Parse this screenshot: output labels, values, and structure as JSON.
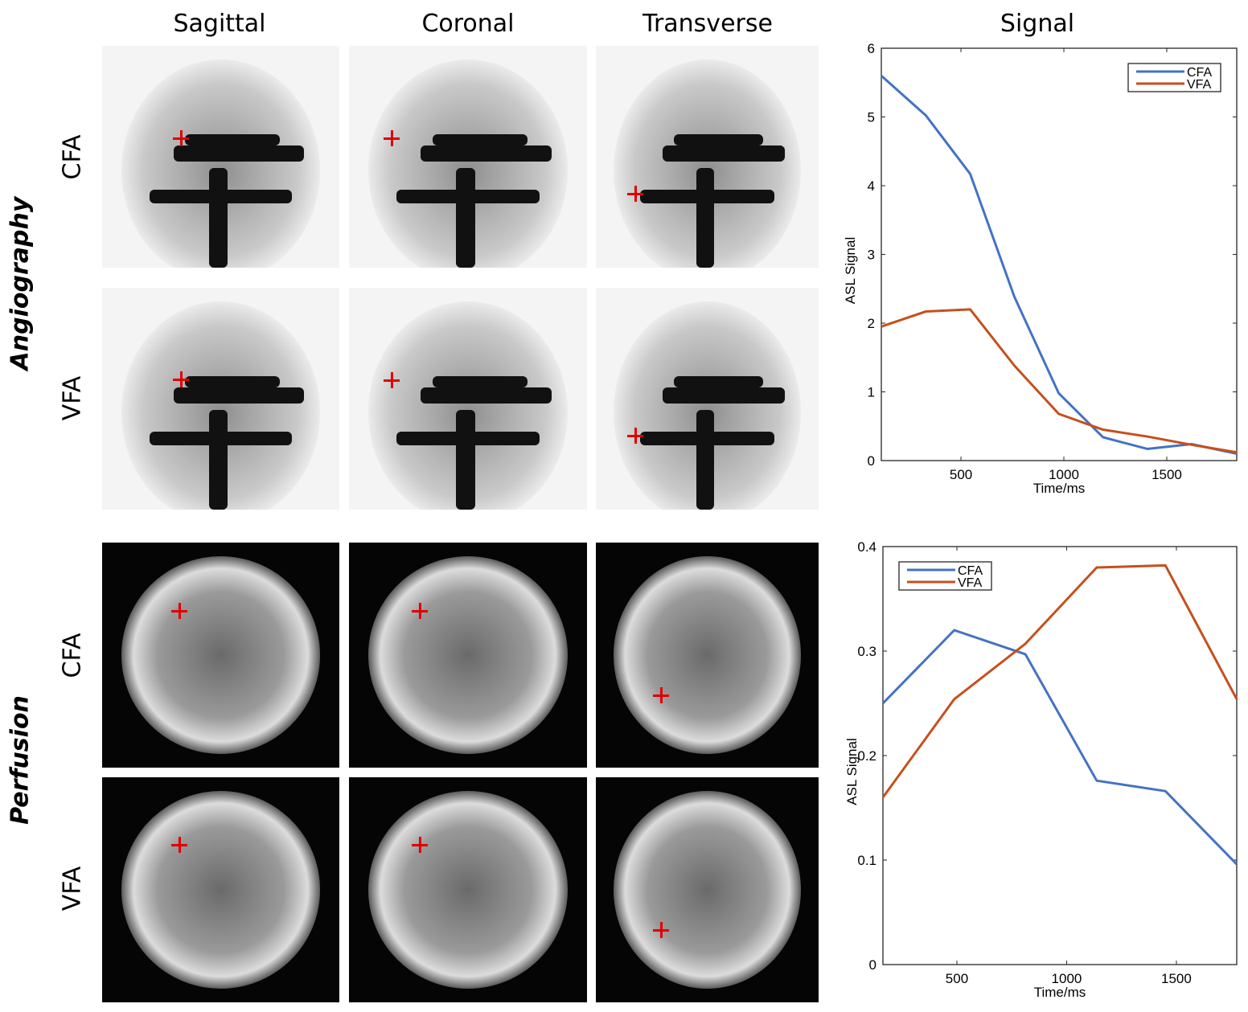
{
  "columns": [
    "Sagittal",
    "Coronal",
    "Transverse",
    "Signal"
  ],
  "groups": [
    "Angiography",
    "Perfusion"
  ],
  "rows": [
    "CFA",
    "VFA"
  ],
  "colors": {
    "CFA": "#4472c4",
    "VFA": "#c5501c",
    "marker": "#e00000"
  },
  "chart_data": [
    {
      "type": "line",
      "title": "Signal",
      "xlabel": "Time/ms",
      "ylabel": "ASL Signal",
      "xlim": [
        113,
        1840
      ],
      "ylim": [
        0,
        6
      ],
      "xticks": [
        500,
        1000,
        1500
      ],
      "yticks": [
        0,
        1,
        2,
        3,
        4,
        5,
        6
      ],
      "legend": "top-right",
      "x": [
        113,
        330,
        545,
        760,
        975,
        1190,
        1405,
        1620,
        1840
      ],
      "series": [
        {
          "name": "CFA",
          "values": [
            5.6,
            5.02,
            4.17,
            2.38,
            0.98,
            0.34,
            0.17,
            0.24,
            0.1
          ]
        },
        {
          "name": "VFA",
          "values": [
            1.95,
            2.17,
            2.2,
            1.38,
            0.68,
            0.45,
            0.35,
            0.23,
            0.12
          ]
        }
      ]
    },
    {
      "type": "line",
      "xlabel": "Time/ms",
      "ylabel": "ASL Signal",
      "xlim": [
        163,
        1775
      ],
      "ylim": [
        0,
        0.4
      ],
      "xticks": [
        500,
        1000,
        1500
      ],
      "yticks": [
        0,
        0.1,
        0.2,
        0.3,
        0.4
      ],
      "legend": "top-left",
      "x": [
        163,
        488,
        812,
        1137,
        1450,
        1775
      ],
      "series": [
        {
          "name": "CFA",
          "values": [
            0.25,
            0.32,
            0.297,
            0.176,
            0.166,
            0.096
          ]
        },
        {
          "name": "VFA",
          "values": [
            0.16,
            0.254,
            0.307,
            0.38,
            0.382,
            0.254
          ]
        }
      ]
    }
  ]
}
